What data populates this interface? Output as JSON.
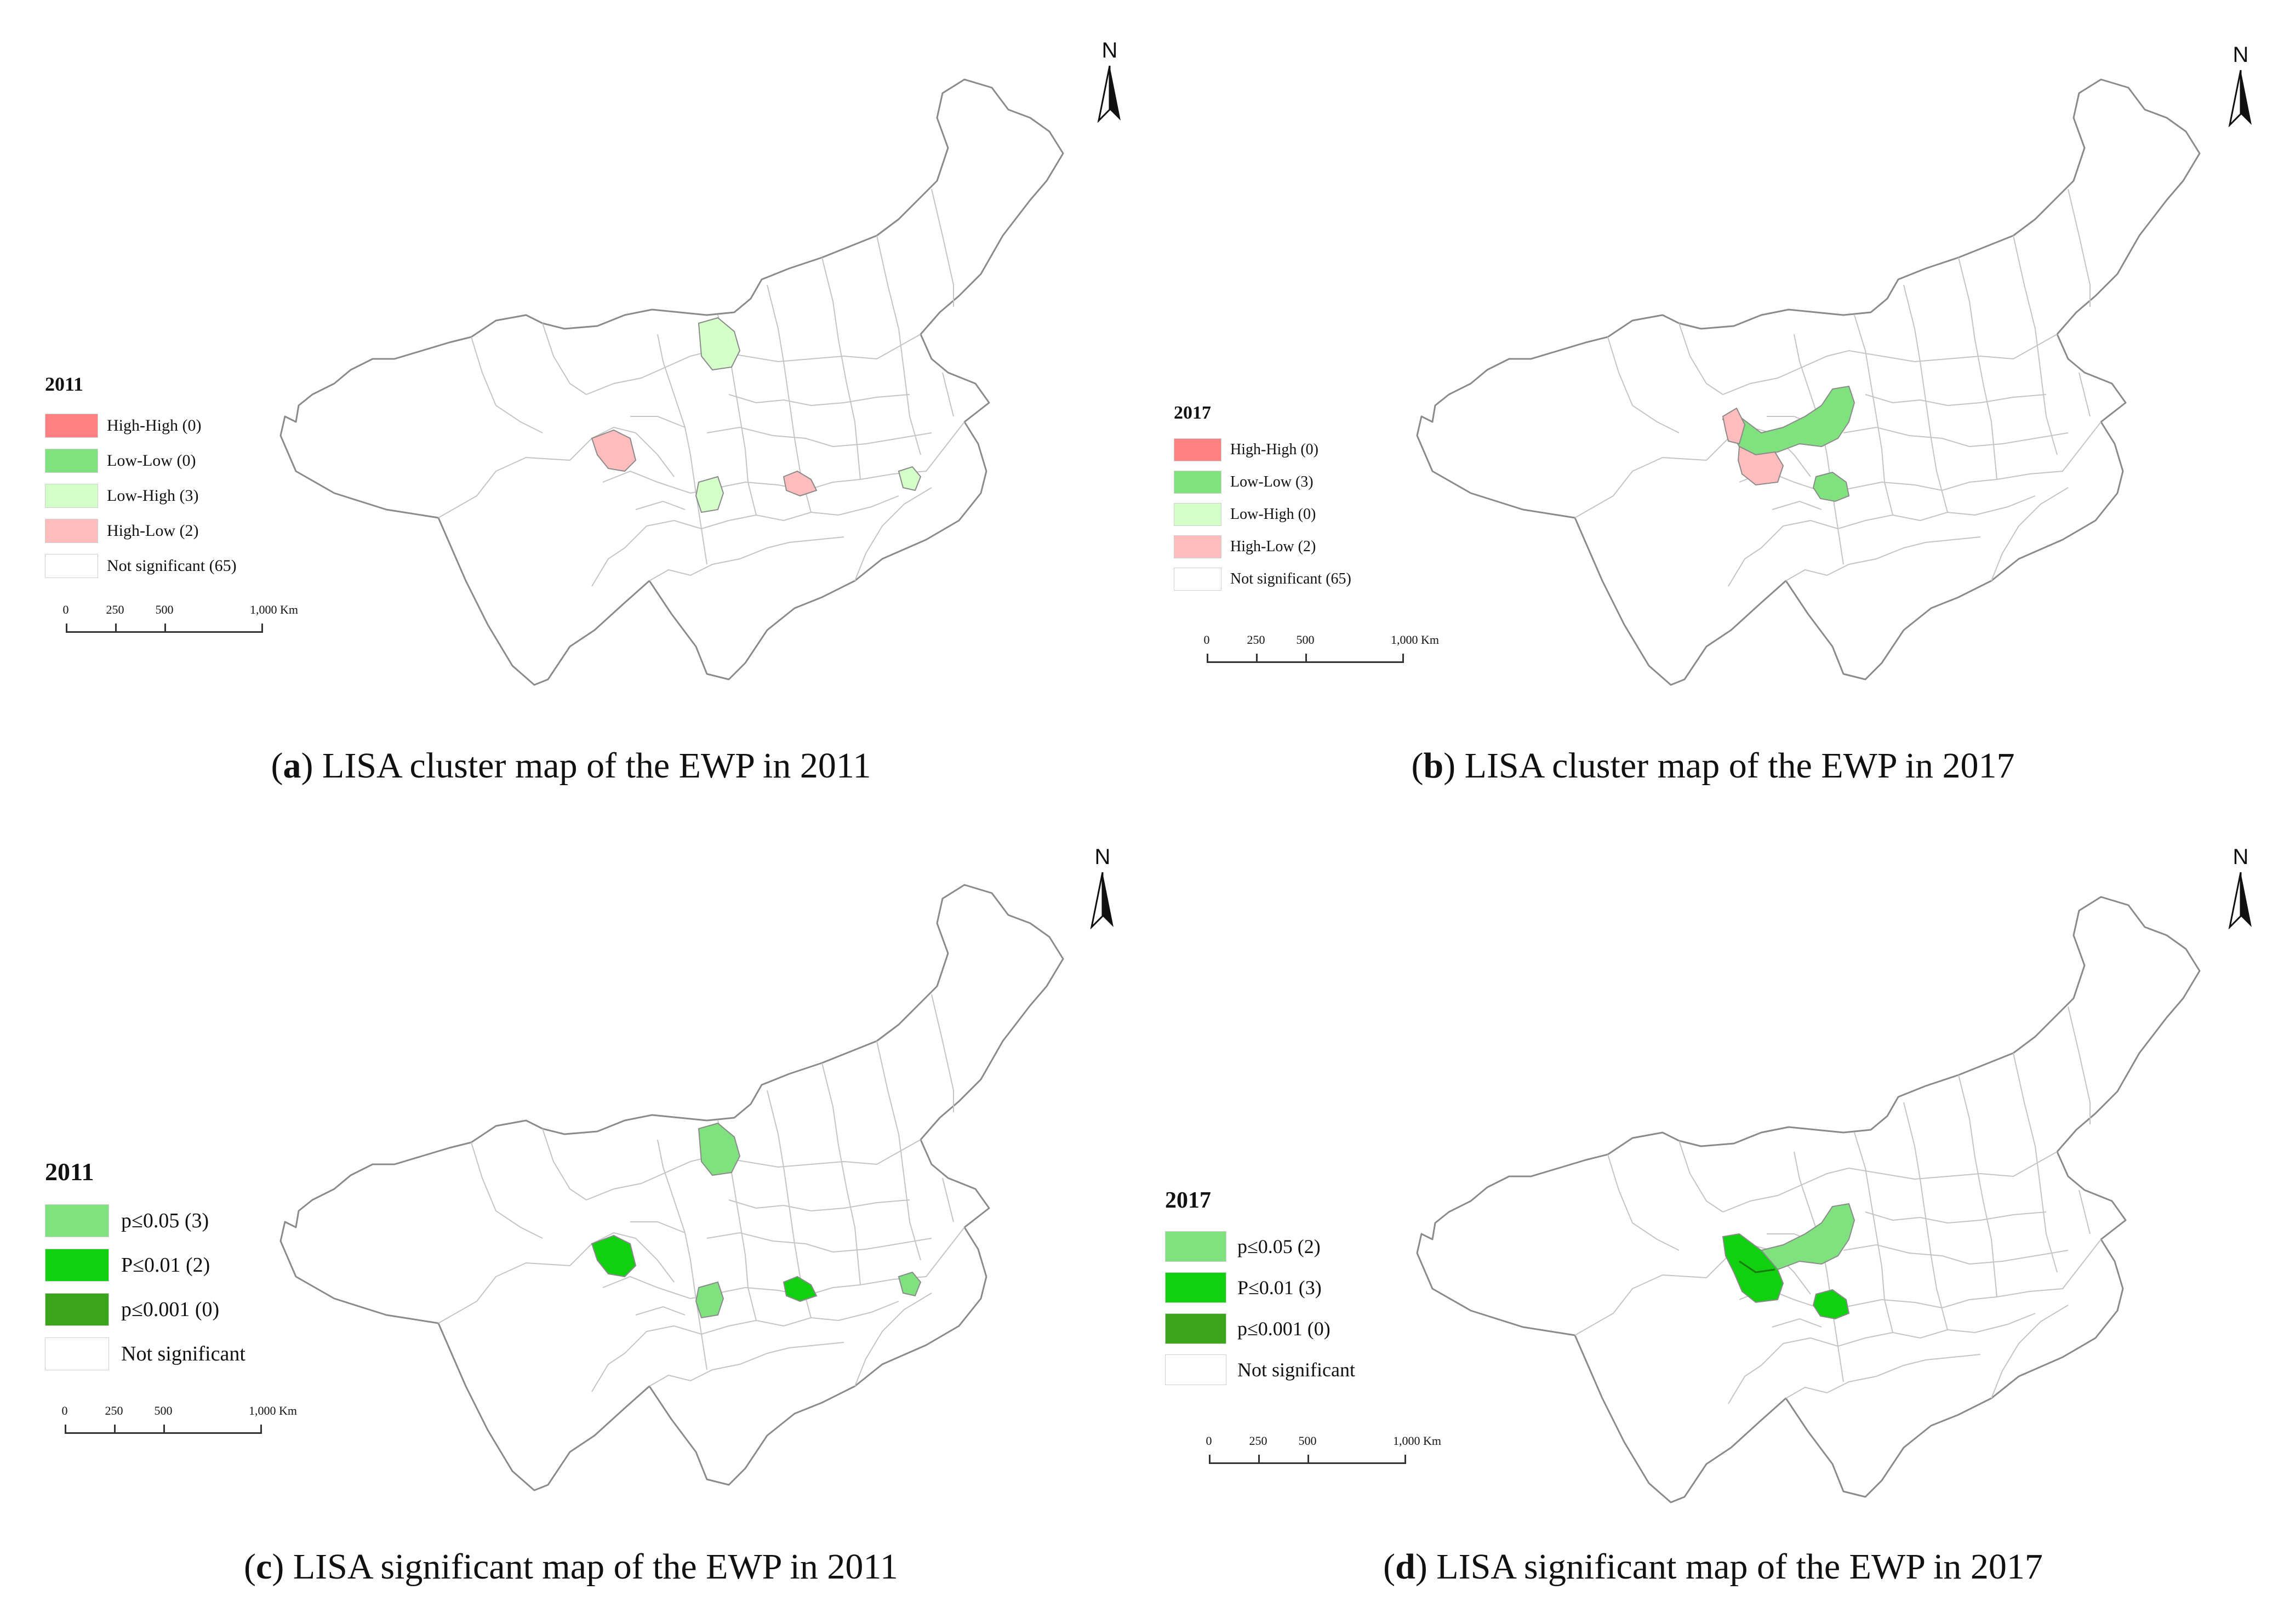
{
  "north_label": "N",
  "scale": {
    "ticks": [
      "0",
      "250",
      "500",
      "1,000 Km"
    ]
  },
  "colors": {
    "high_high": "#ff8080",
    "low_low": "#7fe27f",
    "low_high": "#d4ffc8",
    "high_low": "#ffbcbc",
    "not_significant": "#ffffff",
    "p005": "#7fe27f",
    "p001": "#10d010",
    "p0001": "#3aa51a"
  },
  "panels": {
    "a": {
      "legend_title": "2011",
      "legend": [
        "High-High (0)",
        "Low-Low (0)",
        "Low-High (3)",
        "High-Low (2)",
        "Not significant (65)"
      ],
      "caption_letter": "a",
      "caption_text": " LISA cluster map of the EWP in 2011"
    },
    "b": {
      "legend_title": "2017",
      "legend": [
        "High-High (0)",
        "Low-Low (3)",
        "Low-High (0)",
        "High-Low (2)",
        "Not significant (65)"
      ],
      "caption_letter": "b",
      "caption_text": " LISA cluster map of the EWP in 2017"
    },
    "c": {
      "legend_title": "2011",
      "legend": [
        "p≤0.05 (3)",
        "P≤0.01 (2)",
        "p≤0.001 (0)",
        "Not significant"
      ],
      "caption_letter": "c",
      "caption_text": " LISA significant map of the EWP in 2011"
    },
    "d": {
      "legend_title": "2017",
      "legend": [
        "p≤0.05 (2)",
        "P≤0.01 (3)",
        "p≤0.001 (0)",
        "Not significant"
      ],
      "caption_letter": "d",
      "caption_text": " LISA significant map of the EWP in 2017"
    }
  }
}
